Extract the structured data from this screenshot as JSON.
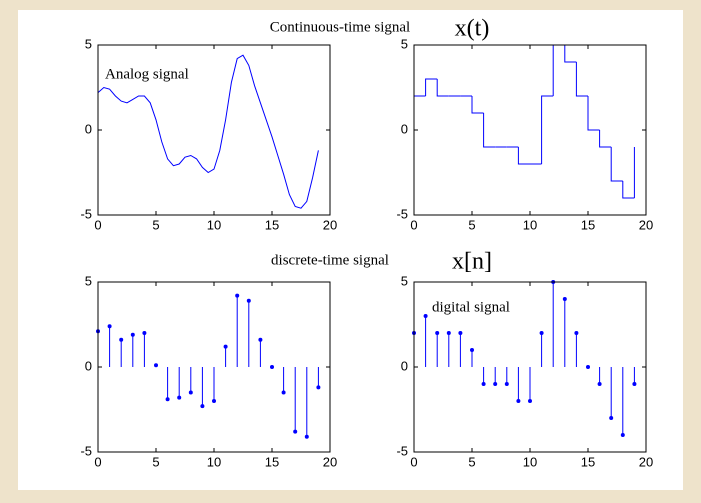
{
  "labels": {
    "continuous": "Continuous-time signal",
    "xt": "x(t)",
    "discrete": "discrete-time signal",
    "xn": "x[n]"
  },
  "chart_data": [
    {
      "type": "line",
      "annotation": "Analog signal",
      "color": "#0000ff",
      "x": [
        0,
        0.5,
        1,
        1.5,
        2,
        2.5,
        3,
        3.5,
        4,
        4.5,
        5,
        5.5,
        6,
        6.5,
        7,
        7.5,
        8,
        8.5,
        9,
        9.5,
        10,
        10.5,
        11,
        11.5,
        12,
        12.5,
        13,
        13.5,
        14,
        14.5,
        15,
        15.5,
        16,
        16.5,
        17,
        17.5,
        18,
        18.5,
        19
      ],
      "values": [
        2.2,
        2.5,
        2.4,
        2.0,
        1.7,
        1.6,
        1.8,
        2.0,
        2.0,
        1.6,
        0.6,
        -0.7,
        -1.7,
        -2.1,
        -2.0,
        -1.6,
        -1.5,
        -1.7,
        -2.2,
        -2.5,
        -2.3,
        -1.2,
        0.6,
        2.8,
        4.2,
        4.4,
        3.8,
        2.6,
        1.6,
        0.6,
        -0.4,
        -1.5,
        -2.6,
        -3.8,
        -4.5,
        -4.6,
        -4.2,
        -2.8,
        -1.2
      ],
      "xlim": [
        0,
        20
      ],
      "ylim": [
        -5,
        5
      ],
      "xticks": [
        0,
        5,
        10,
        15,
        20
      ],
      "yticks": [
        -5,
        0,
        5
      ]
    },
    {
      "type": "stairs",
      "color": "#0000ff",
      "x": [
        0,
        1,
        2,
        3,
        4,
        5,
        6,
        7,
        8,
        9,
        10,
        11,
        12,
        13,
        14,
        15,
        16,
        17,
        18,
        19
      ],
      "values": [
        2,
        3,
        2,
        2,
        2,
        1,
        -1,
        -1,
        -1,
        -2,
        -2,
        2,
        5,
        4,
        2,
        0,
        -1,
        -3,
        -4,
        -1
      ],
      "xlim": [
        0,
        20
      ],
      "ylim": [
        -5,
        5
      ],
      "xticks": [
        0,
        5,
        10,
        15,
        20
      ],
      "yticks": [
        -5,
        0,
        5
      ]
    },
    {
      "type": "stem",
      "color": "#0000ff",
      "x": [
        0,
        1,
        2,
        3,
        4,
        5,
        6,
        7,
        8,
        9,
        10,
        11,
        12,
        13,
        14,
        15,
        16,
        17,
        18,
        19
      ],
      "values": [
        2.1,
        2.4,
        1.6,
        1.9,
        2.0,
        0.1,
        -1.9,
        -1.8,
        -1.5,
        -2.3,
        -2.0,
        1.2,
        4.2,
        3.9,
        1.6,
        0.0,
        -1.5,
        -3.8,
        -4.1,
        -1.2
      ],
      "xlim": [
        0,
        20
      ],
      "ylim": [
        -5,
        5
      ],
      "xticks": [
        0,
        5,
        10,
        15,
        20
      ],
      "yticks": [
        -5,
        0,
        5
      ]
    },
    {
      "type": "stem",
      "annotation": "digital signal",
      "color": "#0000ff",
      "x": [
        0,
        1,
        2,
        3,
        4,
        5,
        6,
        7,
        8,
        9,
        10,
        11,
        12,
        13,
        14,
        15,
        16,
        17,
        18,
        19
      ],
      "values": [
        2,
        3,
        2,
        2,
        2,
        1,
        -1,
        -1,
        -1,
        -2,
        -2,
        2,
        5,
        4,
        2,
        0,
        -1,
        -3,
        -4,
        -1
      ],
      "xlim": [
        0,
        20
      ],
      "ylim": [
        -5,
        5
      ],
      "xticks": [
        0,
        5,
        10,
        15,
        20
      ],
      "yticks": [
        -5,
        0,
        5
      ]
    }
  ]
}
